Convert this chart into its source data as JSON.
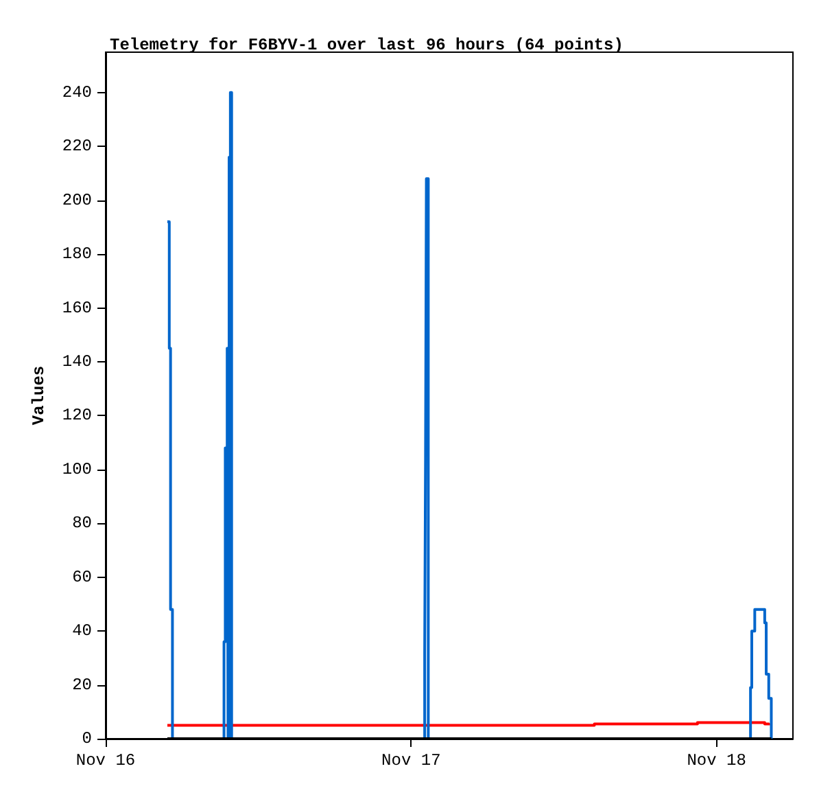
{
  "chart_data": {
    "type": "step",
    "title": "Telemetry for F6BYV-1 over last 96 hours (64 points)",
    "ylabel": "Values",
    "xlim": [
      "--11-16",
      "--11-18T06:00"
    ],
    "xticks": [
      {
        "value": "--11-16",
        "label": "Nov 16"
      },
      {
        "value": "--11-17",
        "label": "Nov 17"
      },
      {
        "value": "--11-18",
        "label": "Nov 18"
      }
    ],
    "ylim": [
      0,
      255
    ],
    "yticks": [
      0,
      20,
      40,
      60,
      80,
      100,
      120,
      140,
      160,
      180,
      200,
      220,
      240
    ],
    "grid": false,
    "marker": "none",
    "line_style": "solid",
    "series": [
      {
        "color": "#ff0000",
        "x": [
          "--11-16T04:51",
          "--11-17T14:24",
          "--11-17T22:30",
          "--11-18T03:47",
          "--11-18T04:06"
        ],
        "values": [
          5,
          5.5,
          6,
          5.5,
          5
        ]
      },
      {
        "color": "#0066cc",
        "x": [
          "--11-16T04:51",
          "--11-16T05:00",
          "--11-16T05:06",
          "--11-16T05:15",
          "--11-16T09:18",
          "--11-16T09:24",
          "--11-16T09:33",
          "--11-16T09:37",
          "--11-16T09:42",
          "--11-16T09:48",
          "--11-16T09:54",
          "--11-17T01:04",
          "--11-17T01:08",
          "--11-17T01:12",
          "--11-17T01:21",
          "--11-18T02:40",
          "--11-18T02:46",
          "--11-18T03:00",
          "--11-18T03:47",
          "--11-18T03:54",
          "--11-18T04:06",
          "--11-18T04:18"
        ],
        "values": [
          192,
          145,
          48,
          0,
          36,
          108,
          145,
          0,
          216,
          240,
          0,
          32,
          104,
          208,
          0,
          19,
          40,
          48,
          43,
          24,
          15,
          0
        ]
      },
      {
        "color": "#000000",
        "x": [
          "--11-16T04:51",
          "--11-18T04:18"
        ],
        "values": [
          0,
          0
        ]
      }
    ]
  }
}
